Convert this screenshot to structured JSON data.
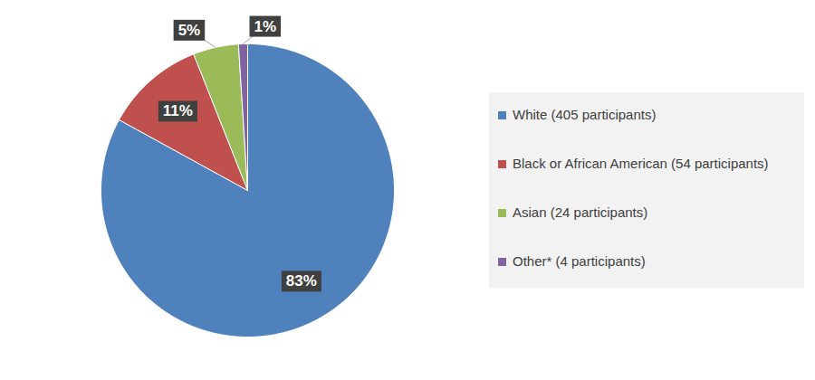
{
  "chart_data": {
    "type": "pie",
    "categories": [
      "White (405 participants)",
      "Black or African American (54 participants)",
      "Asian (24 participants)",
      "Other* (4 participants)"
    ],
    "values": [
      83,
      11,
      5,
      1
    ],
    "value_labels": [
      "83%",
      "11%",
      "5%",
      "1%"
    ],
    "colors": [
      "#4f81bd",
      "#c0504d",
      "#9bbb59",
      "#8064a2"
    ],
    "data_labels": true,
    "legend": "right"
  }
}
